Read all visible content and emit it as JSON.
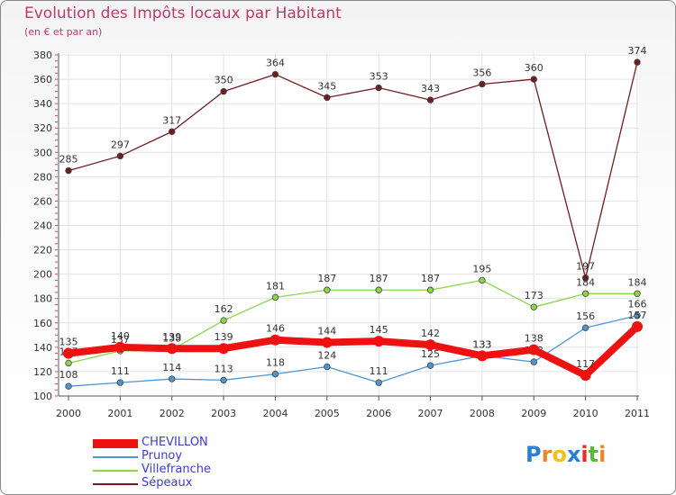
{
  "chart_data": {
    "type": "line",
    "title": "Evolution des Impôts locaux par Habitant",
    "subtitle": "(en € et par an)",
    "xlabel": "",
    "ylabel": "",
    "ylim": [
      100,
      380
    ],
    "yticks": [
      100,
      120,
      140,
      160,
      180,
      200,
      220,
      240,
      260,
      280,
      300,
      320,
      340,
      360,
      380
    ],
    "categories": [
      "2000",
      "2001",
      "2002",
      "2003",
      "2004",
      "2005",
      "2006",
      "2007",
      "2008",
      "2009",
      "2010",
      "2011"
    ],
    "series": [
      {
        "name": "Sépeaux",
        "color": "#6e1e23",
        "values": [
          285,
          297,
          317,
          350,
          364,
          345,
          353,
          343,
          356,
          360,
          197,
          374
        ]
      },
      {
        "name": "Villefranche",
        "color": "#8bd54a",
        "values": [
          127,
          137,
          138,
          162,
          181,
          187,
          187,
          187,
          195,
          173,
          184,
          184
        ]
      },
      {
        "name": "Prunoy",
        "color": "#4f95d2",
        "values": [
          108,
          111,
          114,
          113,
          118,
          124,
          111,
          125,
          133,
          128,
          156,
          166
        ]
      },
      {
        "name": "CHEVILLON",
        "color": "#ee1111",
        "values": [
          135,
          140,
          139,
          139,
          146,
          144,
          145,
          142,
          133,
          138,
          117,
          157
        ]
      }
    ],
    "legend_position": "bottom-left"
  },
  "legend": {
    "items": [
      {
        "label": "CHEVILLON",
        "color": "#ee1111"
      },
      {
        "label": "Prunoy",
        "color": "#4f95d2"
      },
      {
        "label": "Villefranche",
        "color": "#8bd54a"
      },
      {
        "label": "Sépeaux",
        "color": "#6e1e23"
      }
    ]
  },
  "logo": {
    "letters": [
      "P",
      "r",
      "o",
      "x",
      "i",
      "t",
      "i"
    ],
    "colors": [
      "#2a7fd4",
      "#e6892a",
      "#f0c020",
      "#2a7fd4",
      "#e03030",
      "#5cb83a",
      "#e6892a"
    ]
  }
}
